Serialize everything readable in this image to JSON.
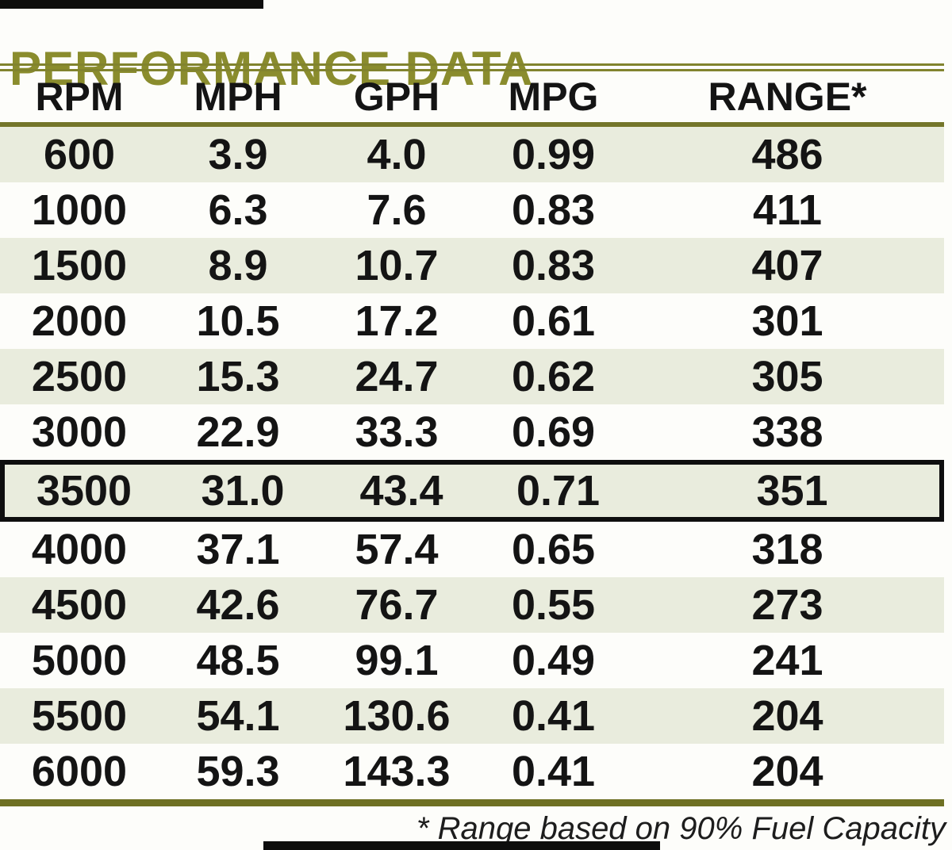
{
  "page": {
    "title": "PERFORMANCE DATA",
    "footnote": "* Range based on 90% Fuel Capacity"
  },
  "table": {
    "columns": [
      "RPM",
      "MPH",
      "GPH",
      "MPG",
      "RANGE*"
    ],
    "rows": [
      [
        "600",
        "3.9",
        "4.0",
        "0.99",
        "486"
      ],
      [
        "1000",
        "6.3",
        "7.6",
        "0.83",
        "411"
      ],
      [
        "1500",
        "8.9",
        "10.7",
        "0.83",
        "407"
      ],
      [
        "2000",
        "10.5",
        "17.2",
        "0.61",
        "301"
      ],
      [
        "2500",
        "15.3",
        "24.7",
        "0.62",
        "305"
      ],
      [
        "3000",
        "22.9",
        "33.3",
        "0.69",
        "338"
      ],
      [
        "3500",
        "31.0",
        "43.4",
        "0.71",
        "351"
      ],
      [
        "4000",
        "37.1",
        "57.4",
        "0.65",
        "318"
      ],
      [
        "4500",
        "42.6",
        "76.7",
        "0.55",
        "273"
      ],
      [
        "5000",
        "48.5",
        "99.1",
        "0.49",
        "241"
      ],
      [
        "5500",
        "54.1",
        "130.6",
        "0.41",
        "204"
      ],
      [
        "6000",
        "59.3",
        "143.3",
        "0.41",
        "204"
      ]
    ],
    "highlighted_row_index": 6,
    "highlighted_rpm": "3500"
  },
  "colors": {
    "accent_olive": "#8a8c2d",
    "rule_olive": "#74762a",
    "row_shade": "#e9ecdd",
    "highlight_border": "#0e0e0e",
    "text": "#141414"
  },
  "chart_data": {
    "type": "table",
    "title": "PERFORMANCE DATA",
    "columns": [
      "RPM",
      "MPH",
      "GPH",
      "MPG",
      "RANGE*"
    ],
    "rows": [
      [
        600,
        3.9,
        4.0,
        0.99,
        486
      ],
      [
        1000,
        6.3,
        7.6,
        0.83,
        411
      ],
      [
        1500,
        8.9,
        10.7,
        0.83,
        407
      ],
      [
        2000,
        10.5,
        17.2,
        0.61,
        301
      ],
      [
        2500,
        15.3,
        24.7,
        0.62,
        305
      ],
      [
        3000,
        22.9,
        33.3,
        0.69,
        338
      ],
      [
        3500,
        31.0,
        43.4,
        0.71,
        351
      ],
      [
        4000,
        37.1,
        57.4,
        0.65,
        318
      ],
      [
        4500,
        42.6,
        76.7,
        0.55,
        273
      ],
      [
        5000,
        48.5,
        99.1,
        0.49,
        241
      ],
      [
        5500,
        54.1,
        130.6,
        0.41,
        204
      ],
      [
        6000,
        59.3,
        143.3,
        0.41,
        204
      ]
    ],
    "annotations": [
      "* Range based on 90% Fuel Capacity",
      "Row 3500 outlined in black"
    ]
  }
}
